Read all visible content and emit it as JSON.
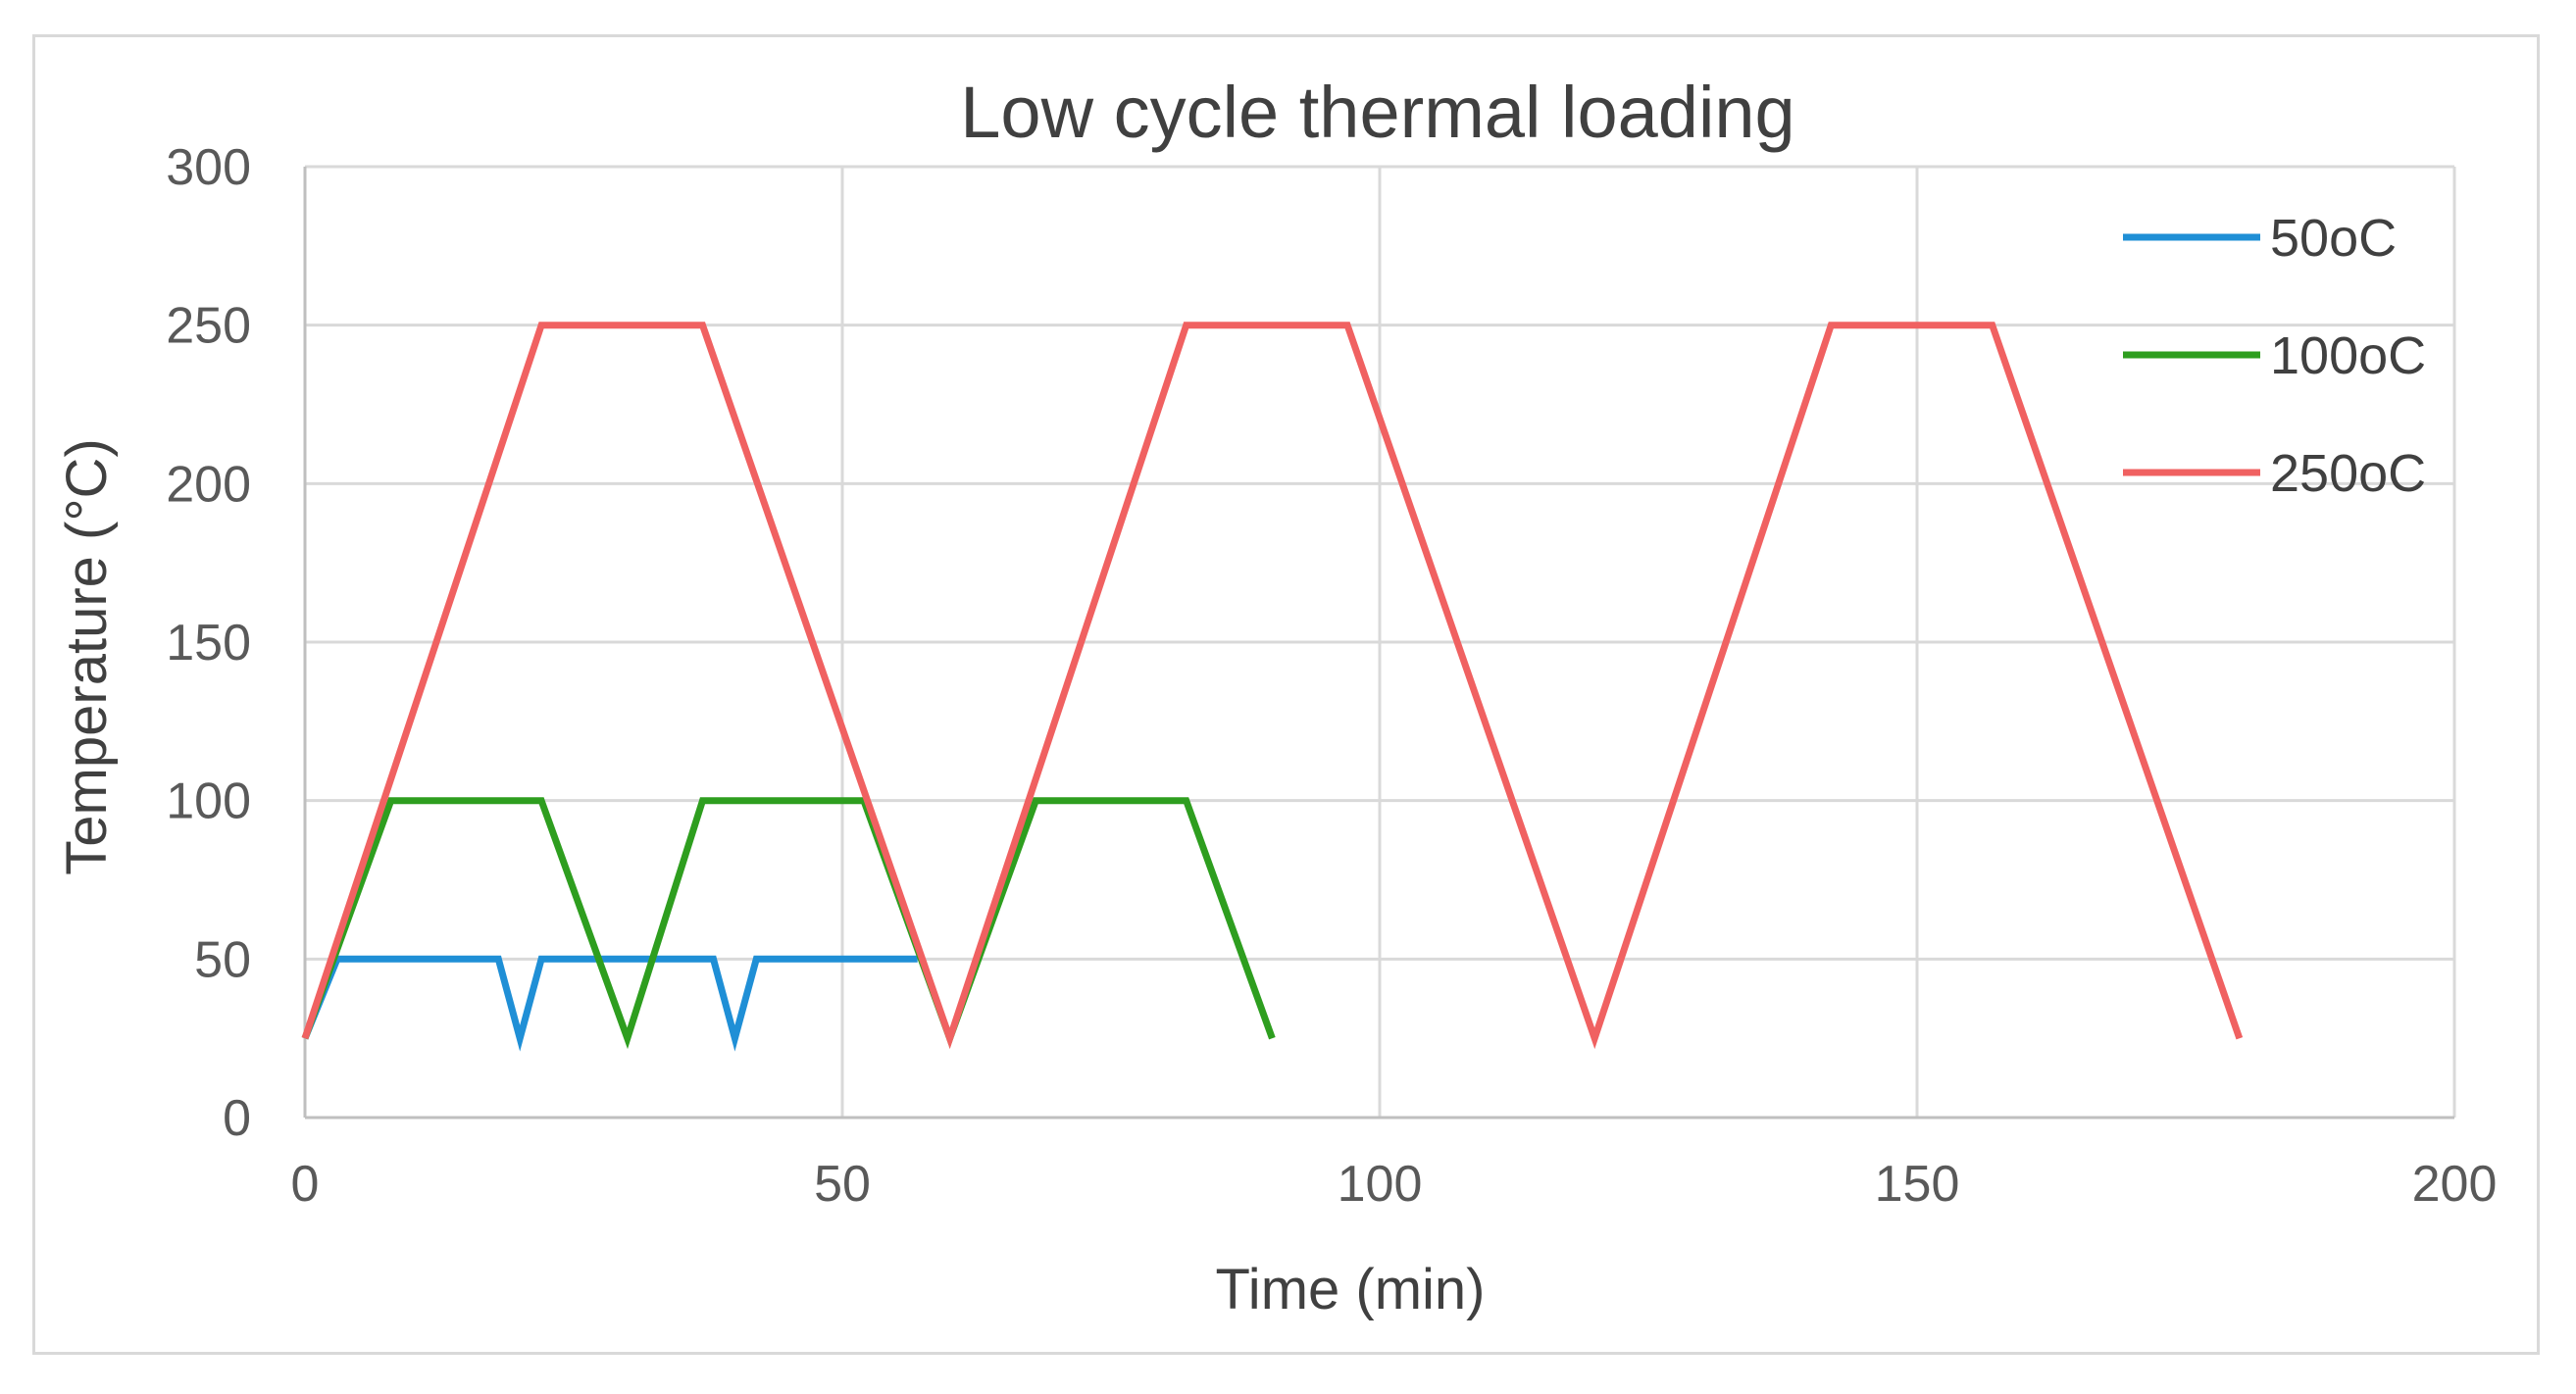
{
  "chart_data": {
    "type": "line",
    "title": "Low cycle thermal loading",
    "xlabel": "Time (min)",
    "ylabel": "Temperature  (°C)",
    "xlim": [
      0,
      200
    ],
    "ylim": [
      0,
      300
    ],
    "xticks": [
      0,
      50,
      100,
      150,
      200
    ],
    "yticks": [
      0,
      50,
      100,
      150,
      200,
      250,
      300
    ],
    "grid": true,
    "legend_position": "top-right",
    "series": [
      {
        "name": "50oC",
        "color": "#1f8fd6",
        "points": [
          [
            0,
            25
          ],
          [
            3,
            50
          ],
          [
            18,
            50
          ],
          [
            20,
            25
          ],
          [
            22,
            50
          ],
          [
            38,
            50
          ],
          [
            40,
            25
          ],
          [
            42,
            50
          ],
          [
            57,
            50
          ]
        ]
      },
      {
        "name": "100oC",
        "color": "#2e9e1f",
        "points": [
          [
            0,
            25
          ],
          [
            8,
            100
          ],
          [
            22,
            100
          ],
          [
            30,
            25
          ],
          [
            37,
            100
          ],
          [
            52,
            100
          ],
          [
            60,
            25
          ],
          [
            68,
            100
          ],
          [
            82,
            100
          ],
          [
            90,
            25
          ]
        ]
      },
      {
        "name": "250oC",
        "color": "#f06161",
        "points": [
          [
            0,
            25
          ],
          [
            22,
            250
          ],
          [
            37,
            250
          ],
          [
            60,
            25
          ],
          [
            82,
            250
          ],
          [
            97,
            250
          ],
          [
            120,
            25
          ],
          [
            142,
            250
          ],
          [
            157,
            250
          ],
          [
            180,
            25
          ]
        ]
      }
    ]
  }
}
